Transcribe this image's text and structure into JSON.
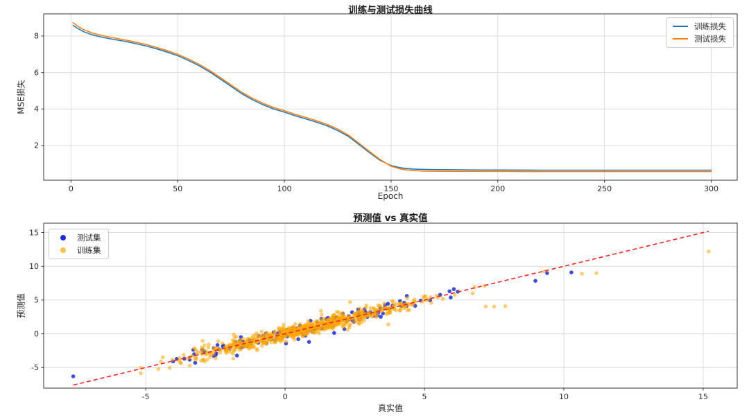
{
  "figure": {
    "background": "#ffffff"
  },
  "chart_data": [
    {
      "type": "line",
      "title": "训练与测试损失曲线",
      "xlabel": "Epoch",
      "ylabel": "MSE损失",
      "xlim": [
        -12.8,
        312.2
      ],
      "ylim": [
        0.1,
        9.21
      ],
      "xticks": [
        0,
        50,
        100,
        150,
        200,
        250,
        300
      ],
      "yticks": [
        2,
        4,
        6,
        8
      ],
      "grid": true,
      "legend_position": "upper right",
      "x": [
        1,
        3,
        6,
        10,
        15,
        20,
        25,
        30,
        35,
        40,
        45,
        50,
        55,
        60,
        65,
        70,
        75,
        80,
        85,
        90,
        95,
        100,
        105,
        110,
        115,
        120,
        125,
        130,
        135,
        140,
        145,
        150,
        155,
        160,
        165,
        170,
        180,
        190,
        200,
        220,
        240,
        260,
        280,
        300
      ],
      "series": [
        {
          "name": "训练损失",
          "color": "#1f77b4",
          "line_width": 1.6,
          "values": [
            8.58,
            8.42,
            8.23,
            8.06,
            7.92,
            7.81,
            7.71,
            7.59,
            7.46,
            7.3,
            7.12,
            6.92,
            6.66,
            6.37,
            6.03,
            5.64,
            5.24,
            4.84,
            4.51,
            4.23,
            4.0,
            3.83,
            3.63,
            3.46,
            3.28,
            3.08,
            2.82,
            2.5,
            2.05,
            1.6,
            1.18,
            0.9,
            0.77,
            0.71,
            0.69,
            0.68,
            0.67,
            0.66,
            0.66,
            0.65,
            0.65,
            0.65,
            0.65,
            0.65
          ]
        },
        {
          "name": "测试损失",
          "color": "#ff7f0e",
          "line_width": 1.6,
          "values": [
            8.73,
            8.55,
            8.34,
            8.16,
            8.01,
            7.9,
            7.79,
            7.67,
            7.54,
            7.38,
            7.2,
            7.0,
            6.74,
            6.45,
            6.11,
            5.72,
            5.32,
            4.92,
            4.59,
            4.31,
            4.08,
            3.91,
            3.71,
            3.54,
            3.36,
            3.16,
            2.9,
            2.57,
            2.12,
            1.66,
            1.22,
            0.86,
            0.7,
            0.63,
            0.6,
            0.59,
            0.58,
            0.58,
            0.58,
            0.57,
            0.57,
            0.57,
            0.57,
            0.57
          ]
        }
      ]
    },
    {
      "type": "scatter",
      "title": "预测值 vs 真实值",
      "xlabel": "真实值",
      "ylabel": "预测值",
      "xlim": [
        -8.66,
        16.22
      ],
      "ylim": [
        -8.05,
        16.39
      ],
      "xticks": [
        -5,
        0,
        5,
        10,
        15
      ],
      "yticks": [
        -5,
        0,
        5,
        10,
        15
      ],
      "grid": true,
      "legend_position": "upper left",
      "series": [
        {
          "name": "测试集",
          "color": "#1b2ce0",
          "alpha": 0.85,
          "marker_radius": 2.8,
          "n_points": 150,
          "seed": 11,
          "x_mean": 0.9,
          "x_std": 2.1,
          "x_range": [
            -5.3,
            7.2
          ],
          "noise_std": 0.48,
          "extra_points": [
            [
              -7.6,
              -6.3
            ],
            [
              8.98,
              7.85
            ],
            [
              9.4,
              9.0
            ],
            [
              10.27,
              9.1
            ],
            [
              5.9,
              6.3
            ]
          ]
        },
        {
          "name": "训练集",
          "color": "#ffa500",
          "alpha": 0.55,
          "marker_radius": 2.8,
          "n_points": 700,
          "seed": 3,
          "x_mean": 0.9,
          "x_std": 2.1,
          "x_range": [
            -5.5,
            7.3
          ],
          "noise_std": 0.48,
          "extra_points": [
            [
              15.2,
              12.2
            ],
            [
              11.17,
              9.0
            ],
            [
              10.65,
              8.9
            ],
            [
              9.3,
              9.25
            ],
            [
              7.2,
              4.05
            ],
            [
              7.5,
              4.05
            ],
            [
              7.9,
              4.1
            ]
          ]
        }
      ],
      "reference_line": {
        "style": "dashed",
        "color": "#ee2222",
        "width": 1.6,
        "from": [
          -7.6,
          -7.6
        ],
        "to": [
          15.2,
          15.2
        ]
      }
    }
  ]
}
